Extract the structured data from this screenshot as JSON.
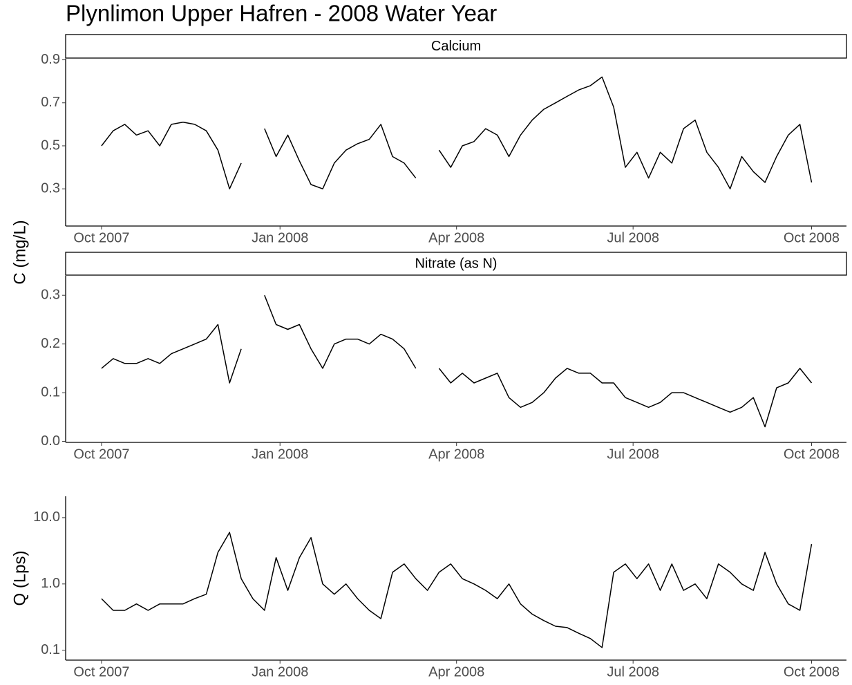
{
  "title": "Plynlimon Upper Hafren - 2008 Water Year",
  "ylabel": "C (mg/L)",
  "chart_data": [
    {
      "type": "line",
      "strip": "Calcium",
      "x": [
        0,
        6,
        12,
        18,
        24,
        30,
        36,
        42,
        48,
        54,
        60,
        66,
        72,
        78,
        84,
        90,
        96,
        102,
        108,
        114,
        120,
        126,
        132,
        138,
        144,
        150,
        156,
        162,
        168,
        174,
        180,
        186,
        192,
        198,
        204,
        210,
        216,
        222,
        228,
        234,
        240,
        246,
        252,
        258,
        264,
        270,
        276,
        282,
        288,
        294,
        300,
        306,
        312,
        318,
        324,
        330,
        336,
        342,
        348,
        354,
        360,
        366
      ],
      "xlim": [
        -18.5,
        384
      ],
      "xticks": [
        {
          "value": 0,
          "label": "Oct 2007"
        },
        {
          "value": 92,
          "label": "Jan 2008"
        },
        {
          "value": 183,
          "label": "Apr 2008"
        },
        {
          "value": 274,
          "label": "Jul 2008"
        },
        {
          "value": 366,
          "label": "Oct 2008"
        }
      ],
      "ylim": [
        0.127,
        0.905
      ],
      "yticks": [
        0.3,
        0.5,
        0.7,
        0.9
      ],
      "series": [
        {
          "name": "Calcium",
          "color": "#000000",
          "values": [
            0.5,
            0.57,
            0.6,
            0.55,
            0.57,
            0.5,
            0.6,
            0.61,
            0.6,
            0.57,
            0.48,
            0.3,
            0.42,
            null,
            0.58,
            0.45,
            0.55,
            0.43,
            0.32,
            0.3,
            0.42,
            0.48,
            0.51,
            0.53,
            0.6,
            0.45,
            0.42,
            0.35,
            null,
            0.48,
            0.4,
            0.5,
            0.52,
            0.58,
            0.55,
            0.45,
            0.55,
            0.62,
            0.67,
            0.7,
            0.73,
            0.76,
            0.78,
            0.82,
            0.68,
            0.4,
            0.47,
            0.35,
            0.47,
            0.42,
            0.58,
            0.62,
            0.47,
            0.4,
            0.3,
            0.45,
            0.38,
            0.33,
            0.45,
            0.55,
            0.6,
            0.33
          ]
        }
      ]
    },
    {
      "type": "line",
      "strip": "Nitrate (as N)",
      "x": [
        0,
        6,
        12,
        18,
        24,
        30,
        36,
        42,
        48,
        54,
        60,
        66,
        72,
        78,
        84,
        90,
        96,
        102,
        108,
        114,
        120,
        126,
        132,
        138,
        144,
        150,
        156,
        162,
        168,
        174,
        180,
        186,
        192,
        198,
        204,
        210,
        216,
        222,
        228,
        234,
        240,
        246,
        252,
        258,
        264,
        270,
        276,
        282,
        288,
        294,
        300,
        306,
        312,
        318,
        324,
        330,
        336,
        342,
        348,
        354,
        360,
        366
      ],
      "xlim": [
        -18.5,
        384
      ],
      "xticks": [
        {
          "value": 0,
          "label": "Oct 2007"
        },
        {
          "value": 92,
          "label": "Jan 2008"
        },
        {
          "value": 183,
          "label": "Apr 2008"
        },
        {
          "value": 274,
          "label": "Jul 2008"
        },
        {
          "value": 366,
          "label": "Oct 2008"
        }
      ],
      "ylim": [
        -0.002,
        0.34
      ],
      "yticks": [
        {
          "value": 0,
          "label": "0.0"
        },
        0.1,
        0.2,
        0.3
      ],
      "series": [
        {
          "name": "Nitrate (as N)",
          "color": "#000000",
          "values": [
            0.15,
            0.17,
            0.16,
            0.16,
            0.17,
            0.16,
            0.18,
            0.19,
            0.2,
            0.21,
            0.24,
            0.12,
            0.19,
            null,
            0.3,
            0.24,
            0.23,
            0.24,
            0.19,
            0.15,
            0.2,
            0.21,
            0.21,
            0.2,
            0.22,
            0.21,
            0.19,
            0.15,
            null,
            0.15,
            0.12,
            0.14,
            0.12,
            0.13,
            0.14,
            0.09,
            0.07,
            0.08,
            0.1,
            0.13,
            0.15,
            0.14,
            0.14,
            0.12,
            0.12,
            0.09,
            0.08,
            0.07,
            0.08,
            0.1,
            0.1,
            0.09,
            0.08,
            0.07,
            0.06,
            0.07,
            0.09,
            0.03,
            0.11,
            0.12,
            0.15,
            0.12
          ]
        }
      ]
    },
    {
      "type": "line",
      "ylabel": "Q (Lps)",
      "ylog": true,
      "x": [
        0,
        6,
        12,
        18,
        24,
        30,
        36,
        42,
        48,
        54,
        60,
        66,
        72,
        78,
        84,
        90,
        96,
        102,
        108,
        114,
        120,
        126,
        132,
        138,
        144,
        150,
        156,
        162,
        168,
        174,
        180,
        186,
        192,
        198,
        204,
        210,
        216,
        222,
        228,
        234,
        240,
        246,
        252,
        258,
        264,
        270,
        276,
        282,
        288,
        294,
        300,
        306,
        312,
        318,
        324,
        330,
        336,
        342,
        348,
        354,
        360,
        366
      ],
      "xlim": [
        -18.5,
        384
      ],
      "xticks": [
        {
          "value": 0,
          "label": "Oct 2007"
        },
        {
          "value": 92,
          "label": "Jan 2008"
        },
        {
          "value": 183,
          "label": "Apr 2008"
        },
        {
          "value": 274,
          "label": "Jul 2008"
        },
        {
          "value": 366,
          "label": "Oct 2008"
        }
      ],
      "ylim": [
        0.071,
        21
      ],
      "yticks": [
        0.1,
        {
          "value": 1,
          "label": "1.0"
        },
        {
          "value": 10,
          "label": "10.0"
        }
      ],
      "series": [
        {
          "name": "Q",
          "color": "#000000",
          "values": [
            0.6,
            0.4,
            0.4,
            0.5,
            0.4,
            0.5,
            0.5,
            0.5,
            0.6,
            0.7,
            3.0,
            6.0,
            1.2,
            0.6,
            0.4,
            2.5,
            0.8,
            2.5,
            5.0,
            1.0,
            0.7,
            1.0,
            0.6,
            0.4,
            0.3,
            1.5,
            2.0,
            1.2,
            0.8,
            1.5,
            2.0,
            1.2,
            1.0,
            0.8,
            0.6,
            1.0,
            0.5,
            0.35,
            0.28,
            0.23,
            0.22,
            0.18,
            0.15,
            0.11,
            1.5,
            2.0,
            1.2,
            2.0,
            0.8,
            2.0,
            0.8,
            1.0,
            0.6,
            2.0,
            1.5,
            1.0,
            0.8,
            3.0,
            1.0,
            0.5,
            0.4,
            4.0
          ]
        }
      ]
    }
  ]
}
